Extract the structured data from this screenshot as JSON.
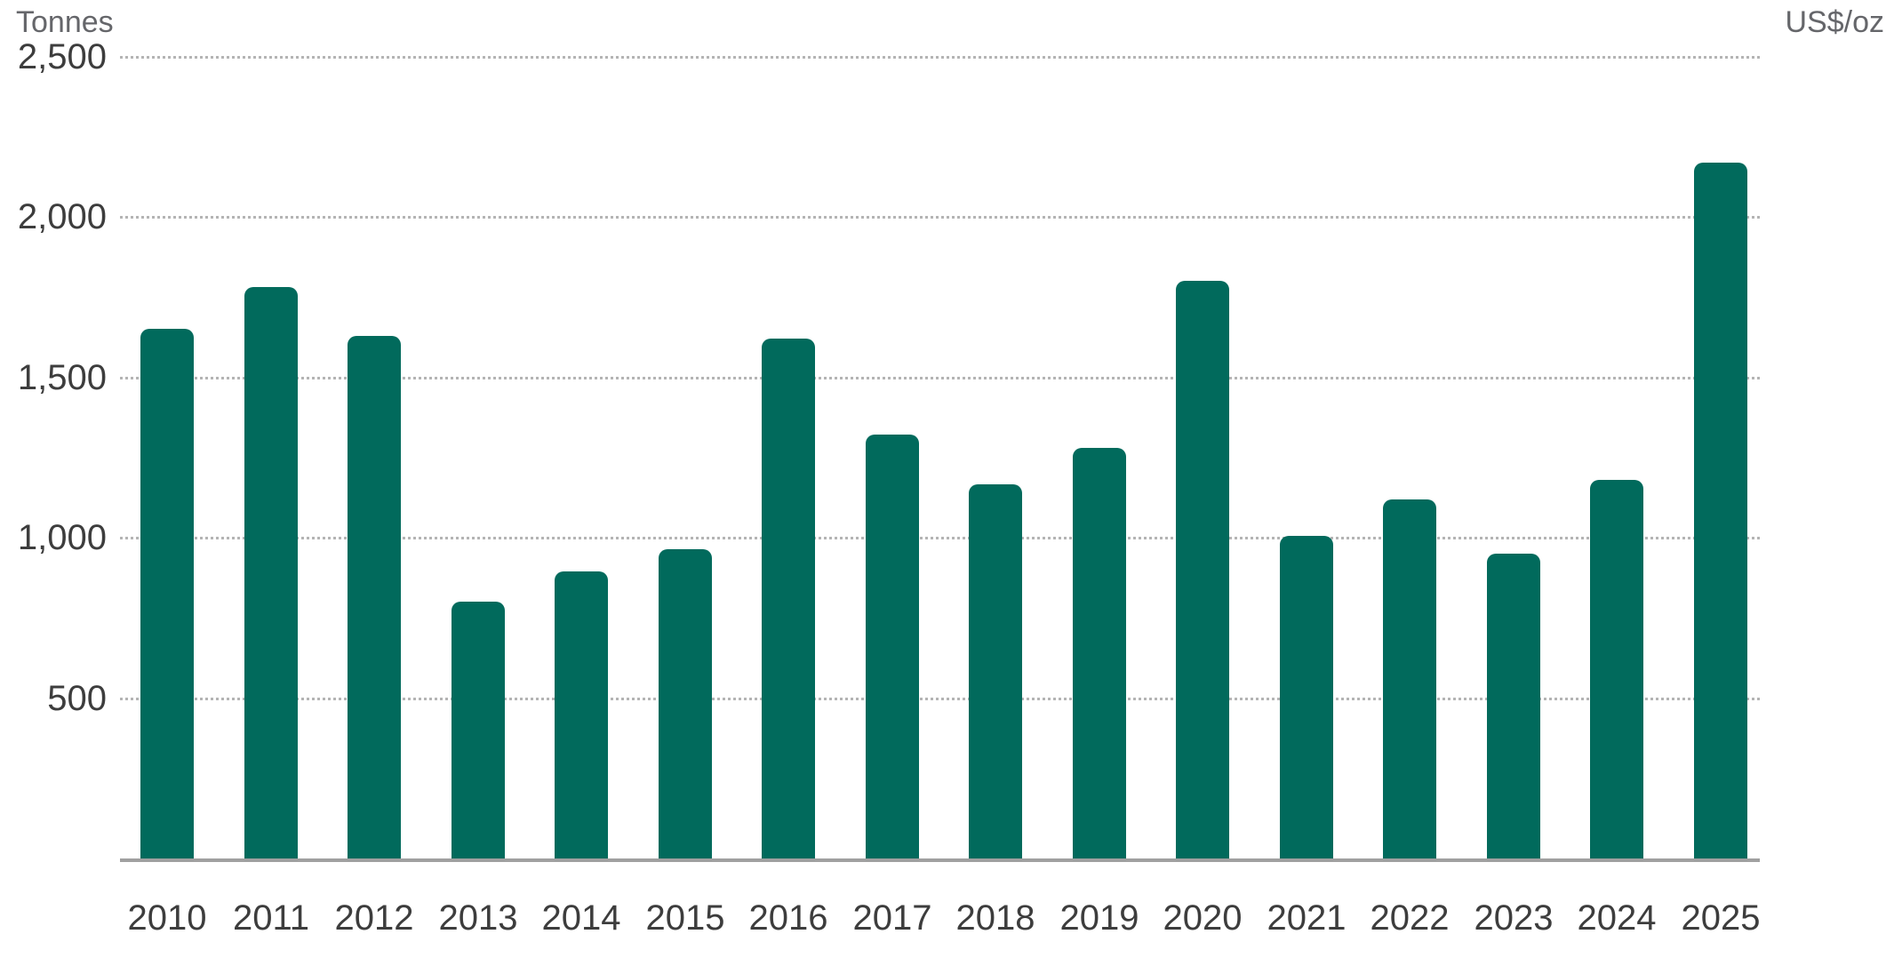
{
  "axes": {
    "left_title": "Tonnes",
    "right_title": "US$/oz"
  },
  "chart_data": {
    "type": "bar",
    "title": "",
    "xlabel": "",
    "ylabel_left": "Tonnes",
    "ylabel_right": "US$/oz",
    "categories": [
      "2010",
      "2011",
      "2012",
      "2013",
      "2014",
      "2015",
      "2016",
      "2017",
      "2018",
      "2019",
      "2020",
      "2021",
      "2022",
      "2023",
      "2024",
      "2025"
    ],
    "values": [
      1650,
      1780,
      1630,
      800,
      895,
      965,
      1620,
      1320,
      1165,
      1280,
      1800,
      1005,
      1120,
      950,
      1180,
      2170
    ],
    "ylim": [
      0,
      2500
    ],
    "ytick_step": 500,
    "yticks": [
      {
        "value": 500,
        "label": "500"
      },
      {
        "value": 1000,
        "label": "1,000"
      },
      {
        "value": 1500,
        "label": "1,500"
      },
      {
        "value": 2000,
        "label": "2,000"
      },
      {
        "value": 2500,
        "label": "2,500"
      }
    ],
    "grid": "horizontal-dotted",
    "legend": "none",
    "right_axis_ticks": "none"
  },
  "colors": {
    "bar": "#016a5c",
    "gridline": "#b4b4b4",
    "axis_line": "#a0a0a0",
    "tick_text": "#3d3d3d",
    "title_text": "#65666a",
    "background": "#ffffff"
  }
}
